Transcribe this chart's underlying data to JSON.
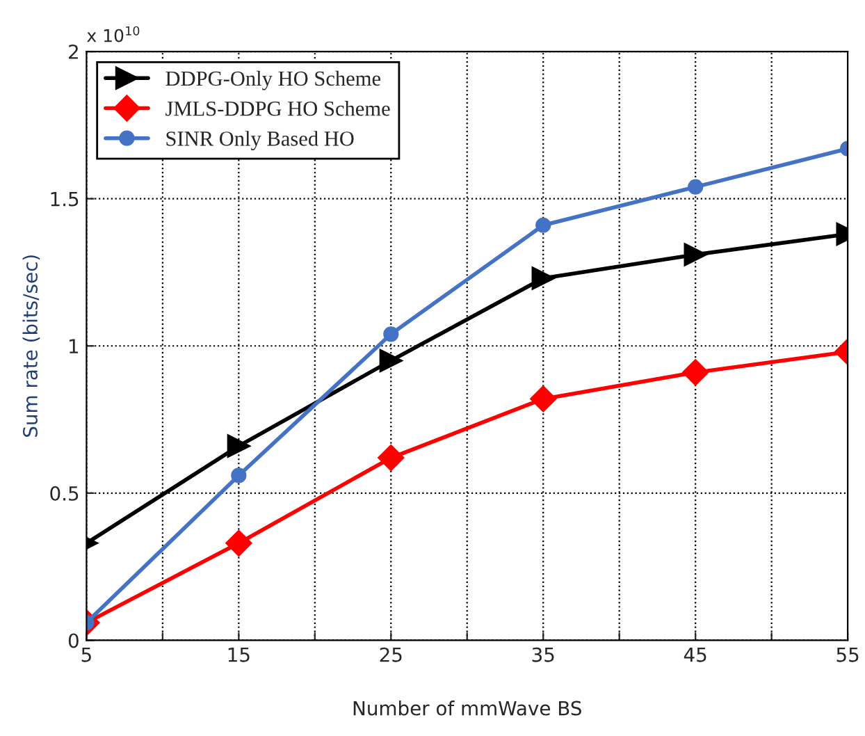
{
  "chart_data": {
    "type": "line",
    "xlabel": "Number of mmWave BS",
    "ylabel": "Sum rate (bits/sec)",
    "annotations": [
      "x 10$^{10}$"
    ],
    "x": [
      5,
      15,
      25,
      35,
      45,
      55
    ],
    "series": [
      {
        "name": "DDPG-Only HO Scheme",
        "color": "#000000",
        "marker": "triangle",
        "values": [
          0.33,
          0.66,
          0.95,
          1.23,
          1.31,
          1.38
        ]
      },
      {
        "name": "JMLS-DDPG HO Scheme",
        "color": "#ff0000",
        "marker": "diamond",
        "values": [
          0.06,
          0.33,
          0.62,
          0.82,
          0.91,
          0.98
        ]
      },
      {
        "name": "SINR Only Based HO",
        "color": "#4472c4",
        "marker": "circle",
        "values": [
          0.06,
          0.56,
          1.04,
          1.41,
          1.54,
          1.67
        ]
      }
    ],
    "xlim": [
      5,
      55
    ],
    "xticks": [
      5,
      {
        "value": 10,
        "label": null
      },
      15,
      {
        "value": 20,
        "label": null
      },
      25,
      {
        "value": 30,
        "label": null
      },
      35,
      {
        "value": 40,
        "label": null
      },
      45,
      {
        "value": 50,
        "label": null
      },
      55
    ],
    "ylim": [
      0,
      2
    ],
    "yticks": [
      0,
      0.5,
      1,
      1.5,
      2
    ],
    "grid": true,
    "legend": "top left",
    "line_style": "solid"
  }
}
